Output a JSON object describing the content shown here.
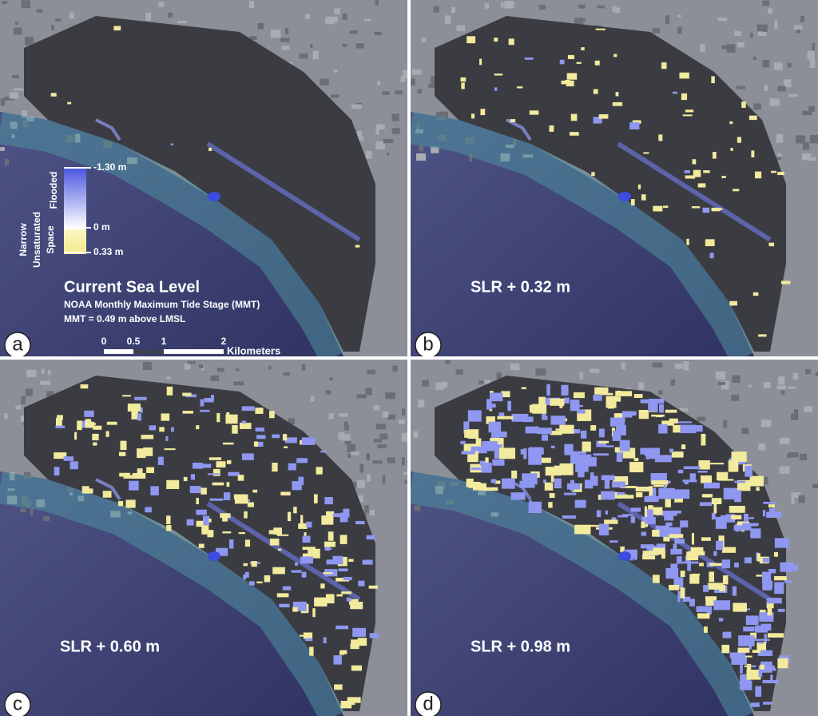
{
  "panels": [
    {
      "label": "a",
      "title": "Current Sea Level",
      "subtitle": [
        "NOAA Monthly Maximum Tide Stage (MMT)",
        "MMT = 0.49 m above LMSL"
      ]
    },
    {
      "label": "b",
      "title": "SLR + 0.32 m"
    },
    {
      "label": "c",
      "title": "SLR + 0.60 m"
    },
    {
      "label": "d",
      "title": "SLR + 0.98 m"
    }
  ],
  "legend": {
    "top_label": "-1.30 m",
    "mid_label": "0 m",
    "bottom_label": "0.33 m",
    "flooded_label": "Flooded",
    "unsaturated_label": [
      "Narrow",
      "Unsaturated",
      "Space"
    ]
  },
  "scale_bar": {
    "ticks": [
      "0",
      "0.5",
      "1",
      "2"
    ],
    "unit": "Kilometers"
  }
}
